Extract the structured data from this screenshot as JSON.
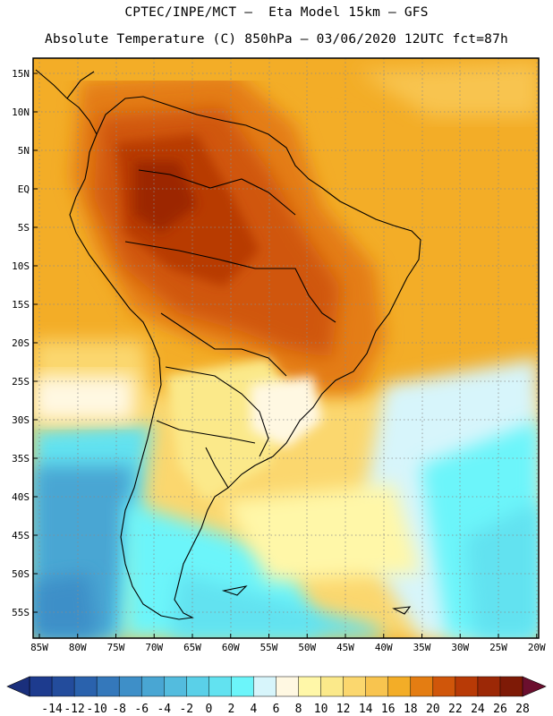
{
  "header": {
    "title_line1": "CPTEC/INPE/MCT –  Eta Model 15km – GFS",
    "title_line2": "Absolute Temperature (C) 850hPa – 03/06/2020 12UTC fct=87h"
  },
  "map": {
    "lat_labels": [
      "15N",
      "10N",
      "5N",
      "EQ",
      "5S",
      "10S",
      "15S",
      "20S",
      "25S",
      "30S",
      "35S",
      "40S",
      "45S",
      "50S",
      "55S"
    ],
    "lon_labels": [
      "85W",
      "80W",
      "75W",
      "70W",
      "65W",
      "60W",
      "55W",
      "50W",
      "45W",
      "40W",
      "35W",
      "30W",
      "25W",
      "20W"
    ],
    "field": "Absolute Temperature (C) 850hPa"
  },
  "colorbar": {
    "ticks": [
      "-14",
      "-12",
      "-10",
      "-8",
      "-6",
      "-4",
      "-2",
      "0",
      "2",
      "4",
      "6",
      "8",
      "10",
      "12",
      "14",
      "16",
      "18",
      "20",
      "22",
      "24",
      "26",
      "28"
    ],
    "colors": [
      "#1d3b8e",
      "#234c9c",
      "#2a62ad",
      "#3478bb",
      "#3e8fc8",
      "#49a6d3",
      "#53bcde",
      "#5ad0e8",
      "#62e2f0",
      "#6cf5fa",
      "#d7f5fb",
      "#fff8e2",
      "#fff7a8",
      "#fbe98a",
      "#fbd76e",
      "#f8c44f",
      "#f3ad27",
      "#e47d12",
      "#d0560a",
      "#b83a06",
      "#9c2806",
      "#7e1a06"
    ],
    "low_arrow_color": "#1a2f7c",
    "high_arrow_color": "#6b0f2e"
  }
}
